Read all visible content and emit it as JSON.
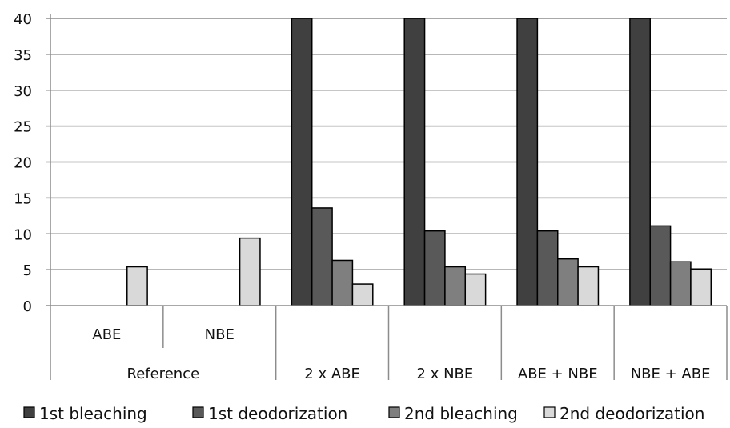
{
  "chart_data": {
    "type": "bar",
    "subcategories": [
      "ABE",
      "NBE",
      "",
      "",
      "",
      ""
    ],
    "groups": [
      "Reference",
      "2 x ABE",
      "2 x NBE",
      "ABE + NBE",
      "NBE + ABE"
    ],
    "categories": [
      "Reference ABE",
      "Reference NBE",
      "2 x ABE",
      "2 x NBE",
      "ABE + NBE",
      "NBE + ABE"
    ],
    "series": [
      {
        "name": "1st bleaching",
        "color": "#404040",
        "values": [
          null,
          null,
          40,
          40,
          40,
          40
        ]
      },
      {
        "name": "1st deodorization",
        "color": "#595959",
        "values": [
          null,
          null,
          13.6,
          10.4,
          10.4,
          11.1
        ]
      },
      {
        "name": "2nd bleaching",
        "color": "#7f7f7f",
        "values": [
          null,
          null,
          6.3,
          5.4,
          6.5,
          6.1
        ]
      },
      {
        "name": "2nd deodorization",
        "color": "#d9d9d9",
        "values": [
          5.4,
          9.4,
          3.0,
          4.4,
          5.4,
          5.1
        ]
      }
    ],
    "ylim": [
      0,
      40
    ],
    "yticks": [
      0,
      5,
      10,
      15,
      20,
      25,
      30,
      35,
      40
    ],
    "gridlines": true,
    "legend_position": "bottom"
  }
}
